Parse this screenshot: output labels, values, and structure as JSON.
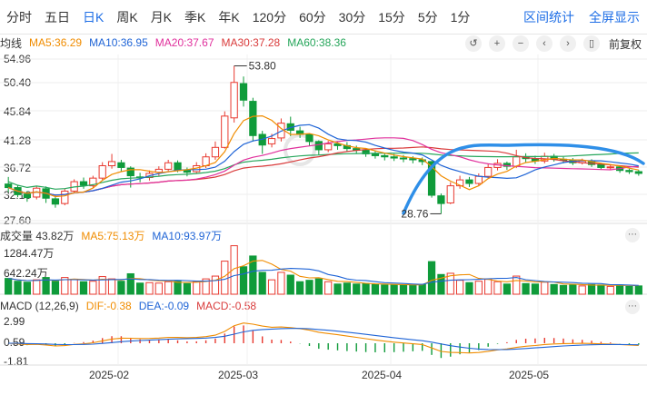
{
  "period_tabs": [
    "分时",
    "五日",
    "日K",
    "周K",
    "月K",
    "季K",
    "年K",
    "120分",
    "60分",
    "30分",
    "15分",
    "5分",
    "1分"
  ],
  "active_tab": "日K",
  "toolbar_links": [
    "区间统计",
    "全屏显示"
  ],
  "price_legend": {
    "label": "均线",
    "ma5": "MA5:36.29",
    "ma10": "MA10:36.95",
    "ma20": "MA20:37.67",
    "ma30": "MA30:37.28",
    "ma60": "MA60:38.36"
  },
  "fuquan_label": "前复权",
  "price_axis": [
    "54.96",
    "50.40",
    "45.84",
    "41.28",
    "36.72",
    "32.16",
    "27.60"
  ],
  "annotations": {
    "high": "53.80",
    "low": "28.76"
  },
  "volume_legend": {
    "label": "成交量 43.82万",
    "ma5": "MA5:75.13万",
    "ma10": "MA10:93.97万"
  },
  "volume_axis": [
    "1284.47万",
    "642.24万"
  ],
  "macd_legend": {
    "label": "MACD (12,26,9)",
    "dif": "DIF:-0.38",
    "dea": "DEA:-0.09",
    "macd": "MACD:-0.58"
  },
  "macd_axis": [
    "2.99",
    "0.59",
    "-1.81"
  ],
  "date_axis": [
    "2025-02",
    "2025-03",
    "2025-04",
    "2025-05"
  ],
  "icons": [
    "undo-icon",
    "zoom-in-icon",
    "zoom-out-icon",
    "pan-left-icon",
    "pan-right-icon",
    "sidebar-toggle-icon"
  ],
  "colors": {
    "up": "#e8392f",
    "down": "#0f9b3a",
    "ma5": "#f08c00",
    "ma10": "#1f64d6",
    "ma20": "#e0309c",
    "ma30": "#d93b3b",
    "ma60": "#26a65b",
    "accent": "#1e6ee6",
    "arc": "#2f8fe8"
  },
  "chart_data": {
    "type": "candlestick",
    "price_range": [
      27.6,
      54.96
    ],
    "series_points": [
      [
        33.8,
        33.2,
        35.0,
        32.4
      ],
      [
        33.2,
        32.0,
        33.6,
        31.6
      ],
      [
        32.1,
        31.5,
        32.6,
        30.8
      ],
      [
        31.6,
        33.1,
        33.5,
        31.2
      ],
      [
        33.0,
        31.4,
        33.4,
        30.6
      ],
      [
        31.3,
        30.4,
        31.8,
        29.8
      ],
      [
        30.5,
        32.6,
        33.0,
        30.2
      ],
      [
        32.6,
        34.2,
        34.6,
        32.2
      ],
      [
        34.2,
        33.6,
        34.9,
        33.0
      ],
      [
        33.5,
        34.8,
        35.2,
        33.2
      ],
      [
        34.8,
        36.9,
        37.5,
        34.5
      ],
      [
        36.9,
        37.6,
        38.9,
        36.4
      ],
      [
        37.4,
        36.6,
        37.9,
        35.9
      ],
      [
        36.5,
        35.2,
        36.8,
        33.2
      ],
      [
        35.0,
        34.9,
        35.7,
        34.1
      ],
      [
        34.9,
        35.6,
        36.1,
        34.4
      ],
      [
        35.8,
        36.3,
        36.8,
        35.2
      ],
      [
        36.3,
        37.4,
        37.9,
        36.0
      ],
      [
        37.4,
        36.1,
        37.8,
        35.8
      ],
      [
        36.1,
        35.8,
        36.6,
        35.1
      ],
      [
        35.9,
        36.9,
        37.5,
        35.6
      ],
      [
        36.9,
        38.4,
        39.0,
        36.5
      ],
      [
        38.4,
        40.0,
        41.0,
        37.9
      ],
      [
        40.0,
        45.3,
        46.1,
        39.8
      ],
      [
        45.0,
        51.0,
        53.8,
        44.2
      ],
      [
        50.8,
        48.0,
        52.0,
        46.9
      ],
      [
        47.8,
        42.0,
        48.4,
        41.0
      ],
      [
        42.2,
        40.4,
        42.8,
        38.9
      ],
      [
        40.6,
        41.5,
        42.3,
        40.0
      ],
      [
        41.6,
        44.1,
        44.9,
        41.0
      ],
      [
        44.0,
        42.9,
        45.2,
        41.9
      ],
      [
        42.8,
        42.2,
        43.5,
        41.6
      ],
      [
        42.2,
        41.0,
        42.4,
        40.2
      ],
      [
        41.0,
        39.6,
        41.2,
        38.7
      ],
      [
        39.6,
        40.6,
        41.1,
        39.2
      ],
      [
        40.6,
        40.3,
        41.0,
        39.6
      ],
      [
        40.3,
        39.8,
        40.9,
        39.3
      ],
      [
        39.8,
        39.5,
        40.3,
        38.9
      ],
      [
        39.5,
        38.9,
        39.9,
        38.4
      ],
      [
        38.9,
        38.6,
        39.4,
        38.1
      ],
      [
        38.6,
        38.4,
        39.0,
        37.8
      ],
      [
        38.4,
        38.2,
        38.9,
        37.7
      ],
      [
        38.2,
        38.1,
        38.7,
        37.5
      ],
      [
        38.1,
        37.9,
        38.5,
        37.3
      ],
      [
        37.9,
        37.6,
        38.3,
        37.0
      ],
      [
        37.6,
        31.9,
        37.7,
        31.5
      ],
      [
        31.8,
        30.5,
        32.2,
        28.76
      ],
      [
        30.6,
        33.5,
        34.1,
        30.4
      ],
      [
        33.5,
        34.5,
        35.2,
        33.0
      ],
      [
        34.5,
        33.9,
        35.0,
        33.3
      ],
      [
        33.9,
        35.1,
        35.6,
        33.6
      ],
      [
        35.1,
        36.6,
        37.2,
        34.8
      ],
      [
        36.6,
        37.3,
        38.0,
        36.1
      ],
      [
        37.3,
        36.8,
        37.6,
        36.2
      ],
      [
        36.8,
        38.4,
        39.6,
        36.5
      ],
      [
        38.4,
        38.1,
        39.0,
        37.5
      ],
      [
        38.1,
        37.7,
        38.6,
        37.2
      ],
      [
        37.7,
        38.5,
        39.1,
        37.3
      ],
      [
        38.5,
        38.0,
        38.9,
        37.6
      ],
      [
        38.0,
        37.8,
        38.4,
        37.3
      ],
      [
        37.8,
        37.4,
        38.2,
        37.0
      ],
      [
        37.4,
        37.7,
        38.1,
        37.1
      ],
      [
        37.7,
        37.1,
        38.0,
        36.7
      ],
      [
        37.1,
        36.6,
        37.4,
        36.2
      ],
      [
        36.6,
        36.7,
        37.1,
        36.2
      ],
      [
        36.7,
        36.1,
        36.9,
        35.7
      ],
      [
        36.1,
        35.9,
        36.4,
        35.5
      ],
      [
        35.9,
        35.6,
        36.2,
        35.2
      ]
    ]
  }
}
